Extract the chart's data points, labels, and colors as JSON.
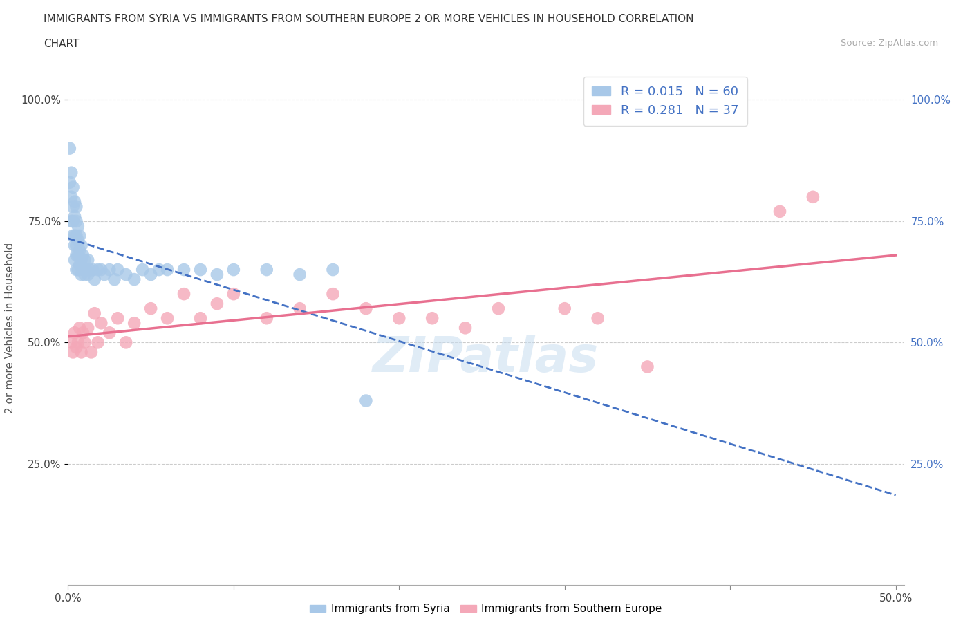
{
  "title_line1": "IMMIGRANTS FROM SYRIA VS IMMIGRANTS FROM SOUTHERN EUROPE 2 OR MORE VEHICLES IN HOUSEHOLD CORRELATION",
  "title_line2": "CHART",
  "source_text": "Source: ZipAtlas.com",
  "ylabel": "2 or more Vehicles in Household",
  "xtick_labels_bottom": [
    "0.0%",
    "",
    "",
    "",
    "",
    "50.0%"
  ],
  "xtick_values": [
    0.0,
    0.1,
    0.2,
    0.3,
    0.4,
    0.5
  ],
  "ytick_labels_left": [
    "25.0%",
    "50.0%",
    "75.0%",
    "100.0%"
  ],
  "ytick_labels_right": [
    "25.0%",
    "50.0%",
    "75.0%",
    "100.0%"
  ],
  "ytick_values": [
    0.25,
    0.5,
    0.75,
    1.0
  ],
  "legend_labels_bottom": [
    "Immigrants from Syria",
    "Immigrants from Southern Europe"
  ],
  "r_syria": 0.015,
  "n_syria": 60,
  "r_southern": 0.281,
  "n_southern": 37,
  "color_syria": "#a8c8e8",
  "color_southern": "#f4a8b8",
  "line_color_syria": "#4472c4",
  "line_color_southern": "#e87090",
  "right_ytick_color": "#4472c4",
  "syria_x": [
    0.001,
    0.001,
    0.002,
    0.002,
    0.002,
    0.003,
    0.003,
    0.003,
    0.003,
    0.004,
    0.004,
    0.004,
    0.004,
    0.004,
    0.005,
    0.005,
    0.005,
    0.005,
    0.005,
    0.005,
    0.006,
    0.006,
    0.006,
    0.006,
    0.007,
    0.007,
    0.007,
    0.008,
    0.008,
    0.008,
    0.009,
    0.009,
    0.01,
    0.01,
    0.011,
    0.012,
    0.012,
    0.013,
    0.015,
    0.016,
    0.018,
    0.02,
    0.022,
    0.025,
    0.028,
    0.03,
    0.035,
    0.04,
    0.045,
    0.05,
    0.055,
    0.06,
    0.07,
    0.08,
    0.09,
    0.1,
    0.12,
    0.14,
    0.16,
    0.18
  ],
  "syria_y": [
    0.9,
    0.83,
    0.85,
    0.8,
    0.75,
    0.82,
    0.78,
    0.75,
    0.72,
    0.79,
    0.76,
    0.72,
    0.7,
    0.67,
    0.78,
    0.75,
    0.72,
    0.7,
    0.68,
    0.65,
    0.74,
    0.71,
    0.68,
    0.65,
    0.72,
    0.69,
    0.66,
    0.7,
    0.67,
    0.64,
    0.68,
    0.65,
    0.67,
    0.64,
    0.65,
    0.67,
    0.64,
    0.65,
    0.65,
    0.63,
    0.65,
    0.65,
    0.64,
    0.65,
    0.63,
    0.65,
    0.64,
    0.63,
    0.65,
    0.64,
    0.65,
    0.65,
    0.65,
    0.65,
    0.64,
    0.65,
    0.65,
    0.64,
    0.65,
    0.38
  ],
  "southern_x": [
    0.002,
    0.003,
    0.004,
    0.005,
    0.006,
    0.007,
    0.008,
    0.009,
    0.01,
    0.012,
    0.014,
    0.016,
    0.018,
    0.02,
    0.025,
    0.03,
    0.035,
    0.04,
    0.05,
    0.06,
    0.07,
    0.08,
    0.09,
    0.1,
    0.12,
    0.14,
    0.16,
    0.18,
    0.2,
    0.22,
    0.24,
    0.26,
    0.3,
    0.32,
    0.35,
    0.43,
    0.45
  ],
  "southern_y": [
    0.5,
    0.48,
    0.52,
    0.49,
    0.5,
    0.53,
    0.48,
    0.52,
    0.5,
    0.53,
    0.48,
    0.56,
    0.5,
    0.54,
    0.52,
    0.55,
    0.5,
    0.54,
    0.57,
    0.55,
    0.6,
    0.55,
    0.58,
    0.6,
    0.55,
    0.57,
    0.6,
    0.57,
    0.55,
    0.55,
    0.53,
    0.57,
    0.57,
    0.55,
    0.45,
    0.77,
    0.8
  ],
  "watermark_text": "ZIPatlas"
}
